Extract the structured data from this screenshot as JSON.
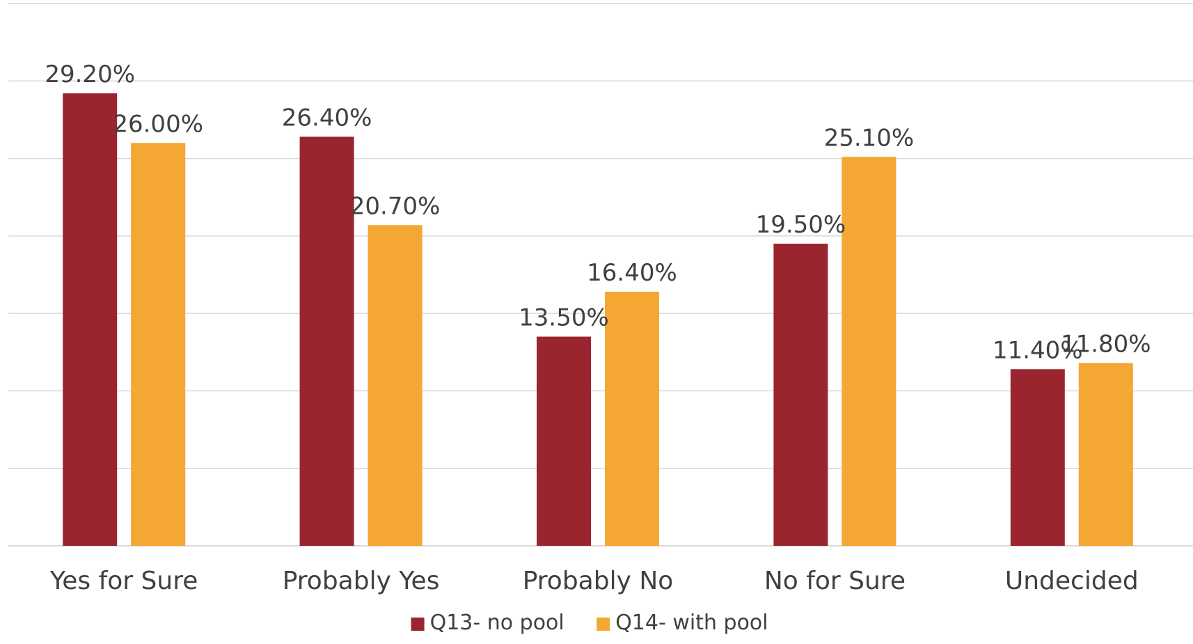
{
  "chart_data": {
    "type": "bar",
    "categories": [
      "Yes for Sure",
      "Probably Yes",
      "Probably No",
      "No for Sure",
      "Undecided"
    ],
    "series": [
      {
        "name": "Q13- no pool",
        "values": [
          29.2,
          26.4,
          13.5,
          19.5,
          11.4
        ],
        "color": "#9b252f"
      },
      {
        "name": "Q14- with pool",
        "values": [
          26.0,
          20.7,
          16.4,
          25.1,
          11.8
        ],
        "color": "#f5a733"
      }
    ],
    "data_labels": [
      [
        "29.20%",
        "26.40%",
        "13.50%",
        "19.50%",
        "11.40%"
      ],
      [
        "26.00%",
        "20.70%",
        "16.40%",
        "25.10%",
        "11.80%"
      ]
    ],
    "ylim": [
      0,
      35
    ],
    "y_tick_labels_shown": false,
    "grid": true,
    "legend": "bottom",
    "title": "",
    "xlabel": "",
    "ylabel": ""
  }
}
